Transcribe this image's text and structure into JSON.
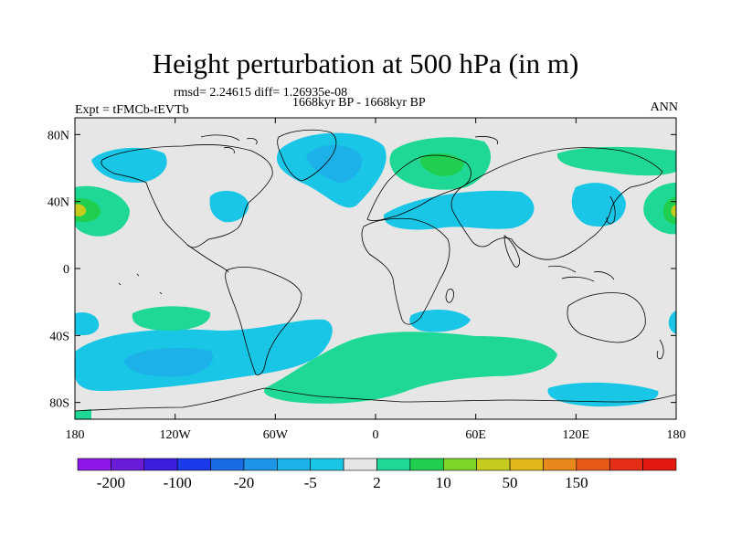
{
  "figure": {
    "title": "Height perturbation at 500 hPa (in m)",
    "stats": "rmsd= 2.24615 diff= 1.26935e-08",
    "experiment": "Expt = tFMCb-tEVTb",
    "period": "1668kyr BP - 1668kyr BP",
    "season": "ANN"
  },
  "axes": {
    "lon_labels": [
      "180",
      "120W",
      "60W",
      "0",
      "60E",
      "120E",
      "180"
    ],
    "lon_values": [
      -180,
      -120,
      -60,
      0,
      60,
      120,
      180
    ],
    "lat_labels": [
      "80N",
      "40N",
      "0",
      "40S",
      "80S"
    ],
    "lat_values": [
      80,
      40,
      0,
      -40,
      -80
    ],
    "lat_range": [
      -90,
      90
    ],
    "lon_range": [
      -180,
      180
    ]
  },
  "colorbar": {
    "colors": [
      "#8d17e8",
      "#6b1cd8",
      "#3b1ee0",
      "#1b3bea",
      "#1a6ae6",
      "#1f95e8",
      "#1cb1e9",
      "#19c6e6",
      "#e6e6e6",
      "#1fd895",
      "#20cf4f",
      "#7fd525",
      "#c6cc1e",
      "#e0b81b",
      "#e8881a",
      "#e85a18",
      "#e42e16",
      "#e41a10"
    ],
    "labels": [
      "-200",
      "-100",
      "-20",
      "-5",
      "2",
      "10",
      "50",
      "150"
    ],
    "label_boundary_index": [
      1,
      3,
      5,
      7,
      9,
      11,
      13,
      15
    ]
  },
  "background_color": "#e6e6e6"
}
